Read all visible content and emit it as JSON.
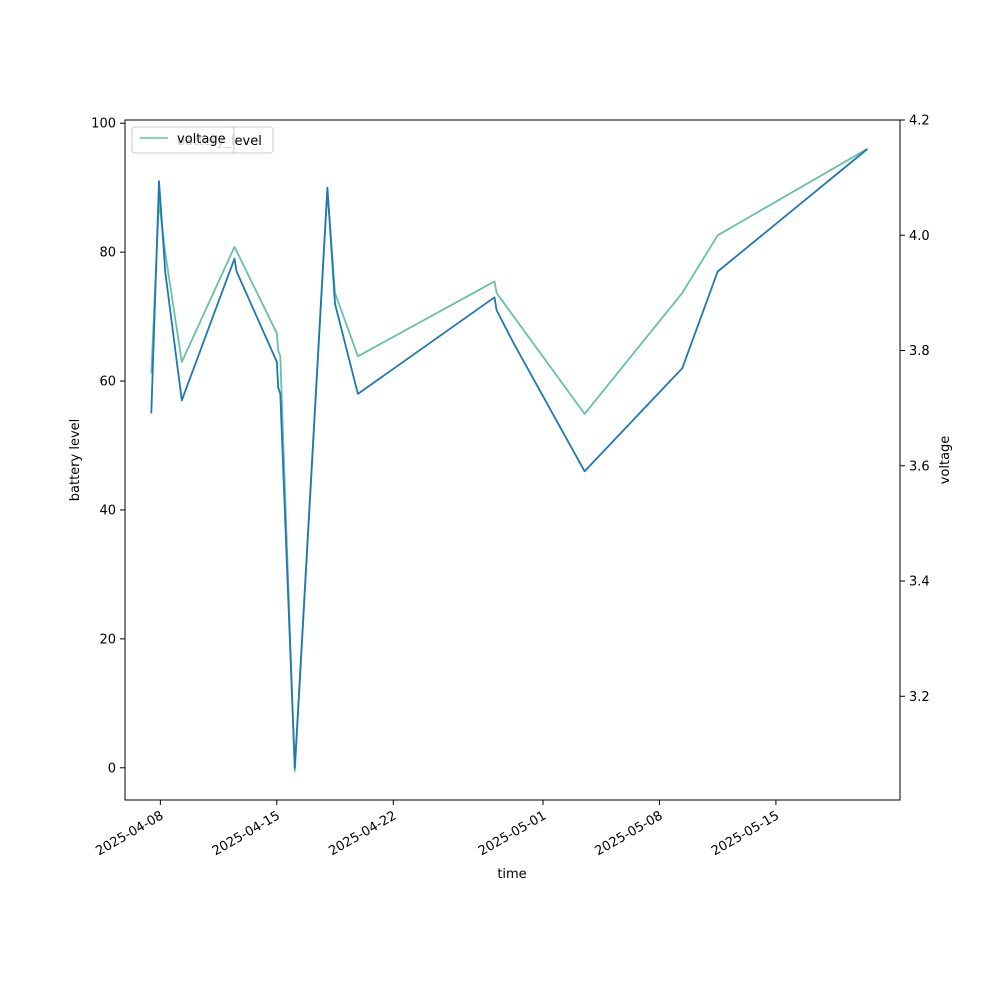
{
  "chart_data": {
    "type": "line",
    "xlabel": "time",
    "ylabel": "battery level",
    "y2label": "voltage",
    "legend": {
      "placement": "top-left",
      "entries": [
        "voltage",
        "battery_level"
      ]
    },
    "grid": false,
    "xlim": [
      "2025-04-05T21:00",
      "2025-05-22T11:00"
    ],
    "ylim": [
      -5,
      100.5
    ],
    "y2lim": [
      3.02,
      4.2
    ],
    "xticks": [
      {
        "date": "2025-04-08",
        "label": "2025-04-08"
      },
      {
        "date": "2025-04-15",
        "label": "2025-04-15"
      },
      {
        "date": "2025-04-22",
        "label": "2025-04-22"
      },
      {
        "date": "2025-05-01",
        "label": "2025-05-01"
      },
      {
        "date": "2025-05-08",
        "label": "2025-05-08"
      },
      {
        "date": "2025-05-15",
        "label": "2025-05-15"
      }
    ],
    "yticks": [
      0,
      20,
      40,
      60,
      80,
      100
    ],
    "y2ticks": [
      3.2,
      3.4,
      3.6,
      3.8,
      4.0,
      4.2
    ],
    "series": [
      {
        "name": "battery_level",
        "axis": "left",
        "color": "#1f77b4",
        "x": [
          "2025-04-07T11:00",
          "2025-04-07T22:00",
          "2025-04-08T02:00",
          "2025-04-08T07:00",
          "2025-04-09T07:00",
          "2025-04-12T11:00",
          "2025-04-12T14:00",
          "2025-04-15T00:00",
          "2025-04-15T02:00",
          "2025-04-15T05:00",
          "2025-04-16T02:00",
          "2025-04-18T01:00",
          "2025-04-18T12:00",
          "2025-04-19T21:00",
          "2025-04-28T02:00",
          "2025-04-28T05:00",
          "2025-04-29T05:00",
          "2025-05-03T12:00",
          "2025-05-09T09:00",
          "2025-05-11T12:00",
          "2025-05-20T12:00"
        ],
        "values": [
          55,
          91,
          85,
          77,
          57,
          79,
          77,
          63,
          59,
          58,
          0,
          90,
          72,
          58,
          73,
          71,
          66,
          46,
          62,
          77,
          96
        ]
      },
      {
        "name": "voltage",
        "axis": "right",
        "color": "#66c2a5",
        "x": [
          "2025-04-07T11:00",
          "2025-04-07T22:00",
          "2025-04-08T07:00",
          "2025-04-09T07:00",
          "2025-04-12T11:00",
          "2025-04-15T00:00",
          "2025-04-15T02:00",
          "2025-04-15T05:00",
          "2025-04-16T02:00",
          "2025-04-18T01:00",
          "2025-04-18T12:00",
          "2025-04-19T21:00",
          "2025-04-28T02:00",
          "2025-04-28T05:00",
          "2025-04-29T05:00",
          "2025-05-03T12:00",
          "2025-05-09T09:00",
          "2025-05-11T12:00",
          "2025-05-20T12:00"
        ],
        "values": [
          3.76,
          4.06,
          3.97,
          3.78,
          3.98,
          3.83,
          3.8,
          3.79,
          3.07,
          4.08,
          3.9,
          3.79,
          3.92,
          3.9,
          3.86,
          3.69,
          3.9,
          4.0,
          4.15
        ]
      }
    ]
  }
}
